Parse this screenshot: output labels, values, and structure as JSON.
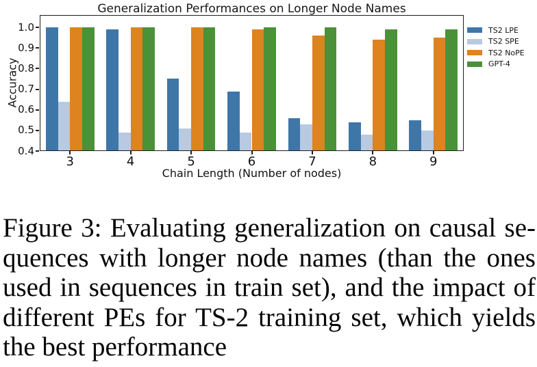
{
  "chart_data": {
    "type": "bar",
    "title": "Generalization Performances on Longer Node Names",
    "xlabel": "Chain Length (Number of nodes)",
    "ylabel": "Accuracy",
    "categories": [
      "3",
      "4",
      "5",
      "6",
      "7",
      "8",
      "9"
    ],
    "series": [
      {
        "name": "TS2 LPE",
        "color": "#3E76A8",
        "values": [
          1.0,
          0.99,
          0.75,
          0.69,
          0.56,
          0.54,
          0.55
        ]
      },
      {
        "name": "TS2 SPE",
        "color": "#B8C9E2",
        "values": [
          0.64,
          0.49,
          0.51,
          0.49,
          0.53,
          0.48,
          0.5
        ]
      },
      {
        "name": "TS2 NoPE",
        "color": "#DD8320",
        "values": [
          1.0,
          1.0,
          1.0,
          0.99,
          0.96,
          0.94,
          0.95
        ]
      },
      {
        "name": "GPT-4",
        "color": "#4A9138",
        "values": [
          1.0,
          1.0,
          1.0,
          1.0,
          1.0,
          0.99,
          0.99
        ]
      }
    ],
    "yticks": [
      0.4,
      0.5,
      0.6,
      0.7,
      0.8,
      0.9,
      1.0
    ],
    "ylim": [
      0.4,
      1.06
    ],
    "grid": false,
    "legend_position": "outside-right"
  },
  "caption": {
    "lines": [
      "Figure 3: Evaluating generalization on causal se-",
      "quences with longer node names (than the ones",
      "used in sequences in train set), and the impact of",
      "different PEs for TS-2 training set, which yields",
      "the best performance"
    ]
  }
}
